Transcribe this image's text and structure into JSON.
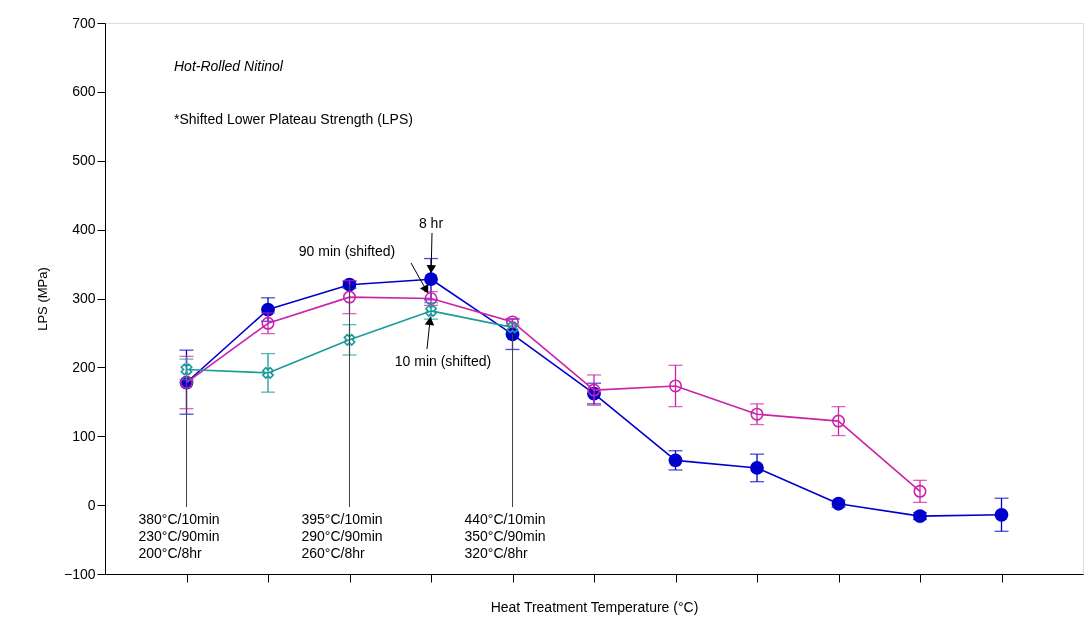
{
  "chart_data": {
    "type": "line",
    "xlabel": "Heat Treatment Temperature (°C)",
    "ylabel": "LPS (MPa)",
    "categories": [
      null,
      null,
      null,
      null,
      null,
      null,
      null,
      null,
      null,
      null,
      null
    ],
    "ylim": [
      -100,
      700
    ],
    "yticks": [
      -100,
      0,
      100,
      200,
      300,
      400,
      500,
      600,
      700
    ],
    "tick_labels": "y",
    "series": [
      {
        "color": "#0000cc",
        "marker": "circle",
        "values": [
          178,
          284,
          320,
          328,
          248,
          162,
          65,
          54,
          2,
          -16,
          -14
        ],
        "errors": [
          [
            132,
            225
          ],
          17,
          5,
          30,
          22,
          15,
          14,
          20,
          5,
          5,
          24
        ]
      },
      {
        "color": "#cc22aa",
        "marker": "circle",
        "values": [
          178,
          264,
          302,
          300,
          266,
          167,
          173,
          132,
          122,
          20,
          null
        ],
        "errors": [
          38,
          15,
          24,
          10,
          5,
          22,
          30,
          15,
          21,
          16,
          null
        ]
      },
      {
        "color": "#1a9a9a",
        "marker": "cross",
        "values": [
          197,
          192,
          240,
          282,
          258,
          null,
          null,
          null,
          null,
          null,
          null
        ],
        "errors": [
          15,
          28,
          22,
          12,
          null,
          null,
          null,
          null,
          null,
          null,
          null
        ]
      }
    ],
    "annotations": [
      "Hot-Rolled Nitinol",
      "*Shifted Lower Plateau Strength (LPS)",
      "8 hr",
      "90 min (shifted)",
      "10 min (shifted)",
      "380°C/10min\n230°C/90min\n200°C/8hr",
      "395°C/10min\n290°C/90min\n260°C/8hr",
      "440°C/10min\n350°C/90min\n320°C/8hr"
    ]
  }
}
